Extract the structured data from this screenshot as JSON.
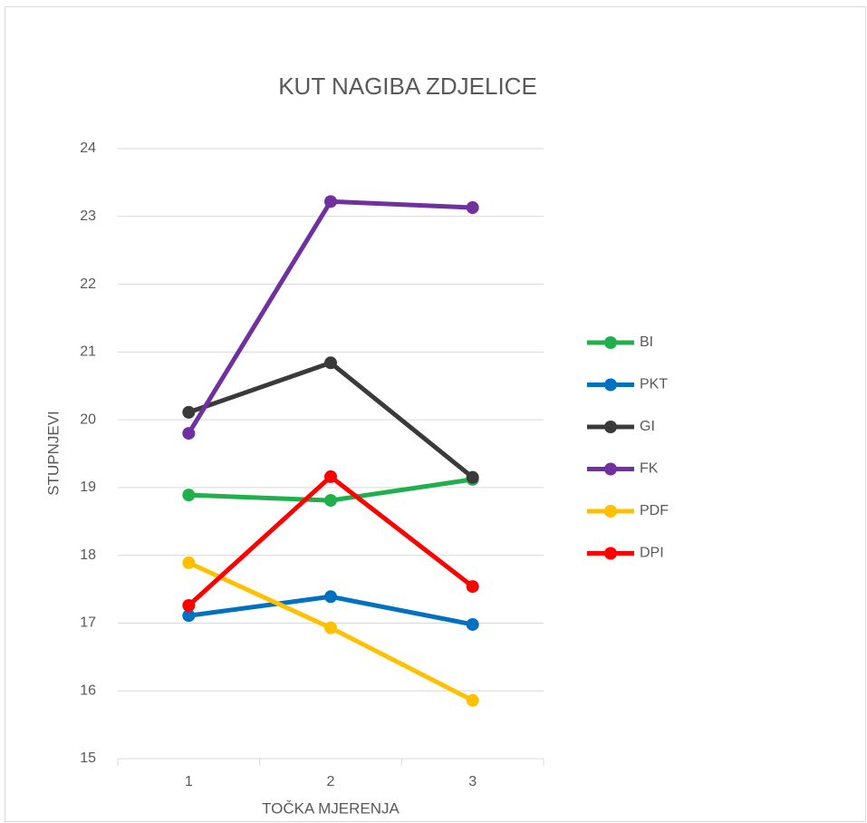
{
  "chart_data": {
    "type": "line",
    "title": "KUT NAGIBA ZDJELICE",
    "x_label": "TOČKA MJERENJA",
    "y_label": "STUPNJEVI",
    "categories": [
      "1",
      "2",
      "3"
    ],
    "series": [
      {
        "name": "BI",
        "color": "#1fb04b",
        "values": [
          18.89,
          18.81,
          19.12
        ]
      },
      {
        "name": "PKT",
        "color": "#0070c0",
        "values": [
          17.11,
          17.39,
          16.98
        ]
      },
      {
        "name": "GI",
        "color": "#3a3a3a",
        "values": [
          20.11,
          20.84,
          19.15
        ]
      },
      {
        "name": "FK",
        "color": "#7030a0",
        "values": [
          19.8,
          23.22,
          23.13
        ]
      },
      {
        "name": "PDF",
        "color": "#ffc000",
        "values": [
          17.89,
          16.93,
          15.86
        ]
      },
      {
        "name": "DPI",
        "color": "#ff0000",
        "values": [
          17.26,
          19.16,
          17.54
        ]
      }
    ],
    "ylim": [
      15,
      24
    ],
    "yticks": [
      15,
      16,
      17,
      18,
      19,
      20,
      21,
      22,
      23,
      24
    ],
    "grid": true,
    "legend": "right"
  }
}
